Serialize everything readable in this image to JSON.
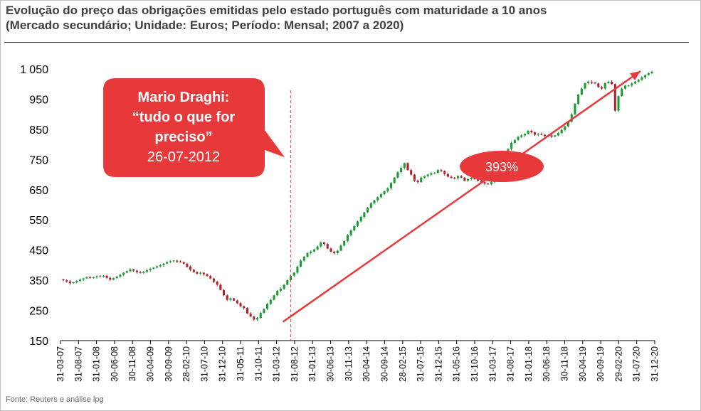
{
  "title_line1": "Evolução do preço das obrigações emitidas pelo estado português com maturidade a 10 anos",
  "title_line2": "(Mercado secundário; Unidade: Euros; Período: Mensal; 2007 a 2020)",
  "source": "Fonte: Reuters e análise lpg",
  "colors": {
    "up": "#1a9a34",
    "down": "#b0202a",
    "accent": "#e8393a"
  },
  "callout": {
    "line1": "Mario Draghi:",
    "line2": "“tudo o que for",
    "line3": "preciso”",
    "date": "26-07-2012"
  },
  "badge": "393%",
  "chart_data": {
    "type": "candlestick",
    "title": "Evolução do preço das obrigações emitidas pelo estado português com maturidade a 10 anos",
    "subtitle": "(Mercado secundário; Unidade: Euros; Período: Mensal; 2007 a 2020)",
    "ylim": [
      150,
      1050
    ],
    "yticks": [
      "150",
      "250",
      "350",
      "450",
      "550",
      "650",
      "750",
      "850",
      "950",
      "1 050"
    ],
    "xticks": [
      "31-03-07",
      "31-08-07",
      "31-01-08",
      "30-06-08",
      "30-11-08",
      "30-04-09",
      "30-09-09",
      "28-02-10",
      "31-07-10",
      "31-12-10",
      "31-05-11",
      "31-10-11",
      "31-03-12",
      "31-08-12",
      "31-01-13",
      "30-06-13",
      "30-11-13",
      "30-04-14",
      "30-09-14",
      "28-02-15",
      "31-07-15",
      "31-12-15",
      "31-05-16",
      "31-10-16",
      "31-03-17",
      "31-08-17",
      "31-01-18",
      "30-06-18",
      "30-11-18",
      "30-04-19",
      "30-09-19",
      "29-02-20",
      "31-07-20",
      "31-12-20"
    ],
    "close": [
      350,
      346,
      340,
      343,
      348,
      352,
      356,
      360,
      358,
      360,
      363,
      362,
      365,
      358,
      352,
      357,
      362,
      368,
      375,
      380,
      386,
      382,
      377,
      374,
      378,
      383,
      388,
      392,
      396,
      400,
      405,
      410,
      413,
      415,
      412,
      410,
      405,
      395,
      385,
      377,
      372,
      375,
      370,
      364,
      356,
      345,
      335,
      318,
      300,
      285,
      290,
      283,
      274,
      264,
      258,
      240,
      230,
      220,
      225,
      242,
      255,
      272,
      285,
      300,
      315,
      322,
      335,
      350,
      365,
      375,
      395,
      415,
      428,
      440,
      445,
      452,
      462,
      475,
      470,
      455,
      445,
      440,
      448,
      465,
      480,
      500,
      515,
      530,
      545,
      560,
      575,
      590,
      605,
      615,
      625,
      635,
      645,
      655,
      672,
      690,
      708,
      722,
      738,
      715,
      700,
      680,
      675,
      690,
      695,
      700,
      705,
      706,
      715,
      712,
      702,
      693,
      690,
      688,
      695,
      690,
      680,
      685,
      690,
      685,
      680,
      675,
      670,
      668,
      675,
      690,
      705,
      730,
      750,
      785,
      805,
      815,
      825,
      830,
      835,
      845,
      840,
      832,
      835,
      832,
      828,
      830,
      826,
      830,
      838,
      848,
      860,
      875,
      900,
      935,
      965,
      985,
      1003,
      1008,
      1005,
      1002,
      990,
      985,
      1003,
      1008,
      1000,
      912,
      960,
      985,
      995,
      995,
      1002,
      1008,
      1014,
      1022,
      1030,
      1036,
      1041
    ],
    "annotations": [
      {
        "text": "Mario Draghi: “tudo o que for preciso” 26-07-2012",
        "type": "vertical-line",
        "x": "26-07-2012"
      },
      {
        "text": "393%",
        "type": "trend-arrow",
        "from_y": 212,
        "to_y": 1043
      }
    ]
  }
}
